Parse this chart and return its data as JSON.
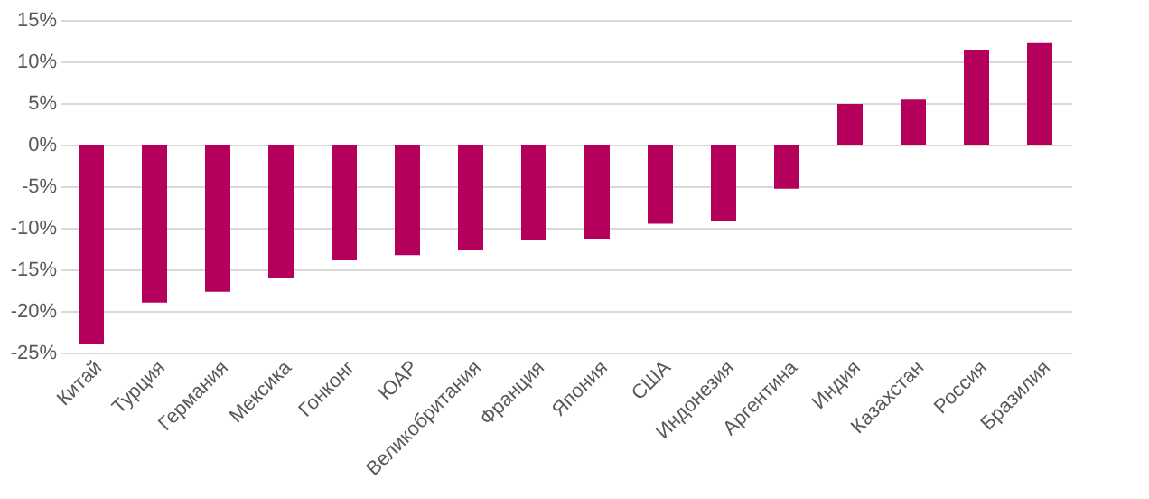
{
  "chart_data": {
    "type": "bar",
    "categories": [
      "Китай",
      "Турция",
      "Германия",
      "Мексика",
      "Гонконг",
      "ЮАР",
      "Великобритания",
      "Франция",
      "Япония",
      "США",
      "Индонезия",
      "Аргентина",
      "Индия",
      "Казахстан",
      "Россия",
      "Бразилия"
    ],
    "values": [
      -23.9,
      -19.0,
      -17.7,
      -16.0,
      -13.9,
      -13.3,
      -12.6,
      -11.5,
      -11.3,
      -9.5,
      -9.2,
      -5.3,
      4.9,
      5.4,
      11.4,
      12.2
    ],
    "color": "#b5005b",
    "ylim": [
      -25,
      15
    ],
    "yticks": [
      {
        "value": -25,
        "label": "-25%"
      },
      {
        "value": -20,
        "label": "-20%"
      },
      {
        "value": -15,
        "label": "-15%"
      },
      {
        "value": -10,
        "label": "-10%"
      },
      {
        "value": -5,
        "label": "-5%"
      },
      {
        "value": 0,
        "label": "0%"
      },
      {
        "value": 5,
        "label": "5%"
      },
      {
        "value": 10,
        "label": "10%"
      },
      {
        "value": 15,
        "label": "15%"
      }
    ],
    "grid": "y"
  }
}
